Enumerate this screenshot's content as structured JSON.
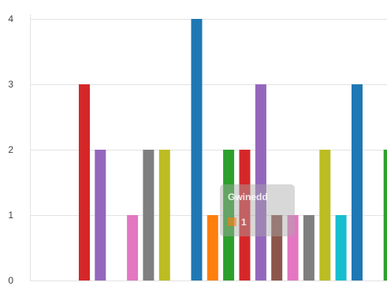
{
  "chart_data": {
    "type": "bar",
    "ylim": [
      0,
      4
    ],
    "yticks": [
      "0",
      "1",
      "2",
      "3",
      "4"
    ],
    "grid": true,
    "bars": [
      {
        "value": 3,
        "color": "#d62728"
      },
      {
        "value": 2,
        "color": "#9467bd"
      },
      {
        "value": 0,
        "color": "#8c564b"
      },
      {
        "value": 1,
        "color": "#e377c2"
      },
      {
        "value": 2,
        "color": "#7f7f7f"
      },
      {
        "value": 2,
        "color": "#bcbd22"
      },
      {
        "value": 0,
        "color": "#17becf"
      },
      {
        "value": 4,
        "color": "#1f77b4"
      },
      {
        "value": 1,
        "color": "#ff7f0e"
      },
      {
        "value": 2,
        "color": "#2ca02c"
      },
      {
        "value": 2,
        "color": "#d62728"
      },
      {
        "value": 3,
        "color": "#9467bd"
      },
      {
        "value": 1,
        "color": "#8c564b"
      },
      {
        "value": 1,
        "color": "#e377c2"
      },
      {
        "value": 1,
        "color": "#7f7f7f"
      },
      {
        "value": 2,
        "color": "#bcbd22"
      },
      {
        "value": 1,
        "color": "#17becf"
      },
      {
        "value": 3,
        "color": "#1f77b4"
      },
      {
        "value": 0,
        "color": "#ff7f0e"
      },
      {
        "value": 2,
        "color": "#2ca02c"
      }
    ],
    "tooltip": {
      "title": "Gwinedd",
      "value": "1",
      "swatch_color": "#ff7f0e"
    }
  }
}
